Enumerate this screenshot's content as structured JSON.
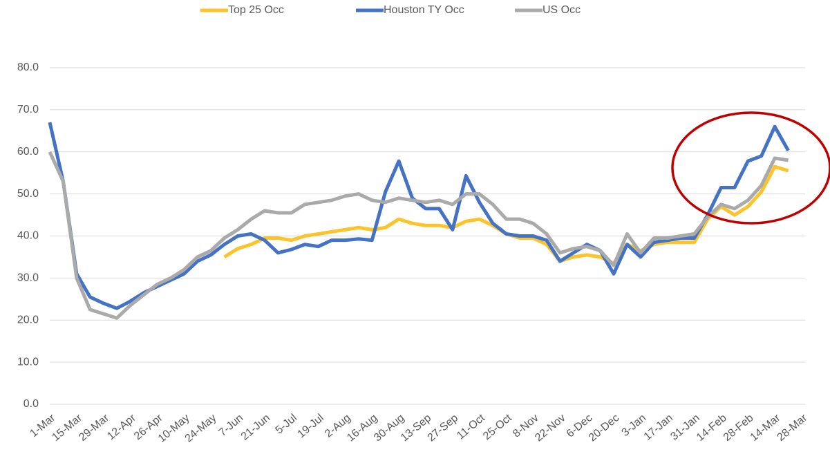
{
  "chart_data": {
    "type": "line",
    "categories": [
      "1-Mar",
      null,
      "15-Mar",
      null,
      "29-Mar",
      null,
      "12-Apr",
      null,
      "26-Apr",
      null,
      "10-May",
      null,
      "24-May",
      null,
      "7-Jun",
      null,
      "21-Jun",
      null,
      "5-Jul",
      null,
      "19-Jul",
      null,
      "2-Aug",
      null,
      "16-Aug",
      null,
      "30-Aug",
      null,
      "13-Sep",
      null,
      "27-Sep",
      null,
      "11-Oct",
      null,
      "25-Oct",
      null,
      "8-Nov",
      null,
      "22-Nov",
      null,
      "6-Dec",
      null,
      "20-Dec",
      null,
      "3-Jan",
      null,
      "17-Jan",
      null,
      "31-Jan",
      null,
      "14-Feb",
      null,
      "28-Feb",
      null,
      "14-Mar",
      null,
      "28-Mar"
    ],
    "series": [
      {
        "name": "Top 25 Occ",
        "color": "#fcc42a",
        "values": [
          null,
          null,
          null,
          null,
          null,
          null,
          null,
          null,
          null,
          null,
          null,
          null,
          null,
          35,
          37,
          38,
          39.5,
          39.5,
          39,
          40,
          40.5,
          41,
          41.5,
          42,
          41.5,
          42,
          44,
          43,
          42.5,
          42.5,
          42,
          43.5,
          44,
          42.5,
          40.5,
          39.5,
          39.5,
          38,
          34,
          35,
          35.5,
          35,
          33.5,
          38,
          36.5,
          38,
          38.5,
          38.5,
          38.5,
          44,
          47,
          45,
          47,
          50.5,
          56.5,
          55.5,
          null
        ]
      },
      {
        "name": "Houston TY Occ",
        "color": "#4472c4",
        "values": [
          67,
          53,
          31,
          25.5,
          24,
          22.8,
          24.5,
          26.5,
          28,
          29.5,
          31,
          34,
          35.5,
          38,
          40,
          40.5,
          39,
          36,
          36.8,
          38,
          37.5,
          39,
          39,
          39.3,
          39,
          50.5,
          57.8,
          49,
          46.5,
          46.5,
          41.5,
          54.3,
          48,
          43,
          40.5,
          40,
          40,
          39,
          34,
          36,
          38,
          36.5,
          31,
          38,
          35,
          38.5,
          39,
          39.5,
          39.5,
          45,
          51.5,
          51.5,
          57.8,
          59,
          66,
          60.3,
          null
        ]
      },
      {
        "name": "US Occ",
        "color": "#aaaaaa",
        "values": [
          60,
          53,
          30,
          22.5,
          21.5,
          20.5,
          23.5,
          26,
          28.5,
          30,
          32,
          35,
          36.5,
          39.5,
          41.5,
          44,
          46,
          45.5,
          45.5,
          47.5,
          48,
          48.5,
          49.5,
          50,
          48.5,
          48,
          49,
          48.5,
          48,
          48.5,
          47.5,
          50,
          50,
          47.5,
          44,
          44,
          43,
          40.5,
          36,
          37,
          37.5,
          36.5,
          33,
          40.5,
          36,
          39.5,
          39.5,
          40,
          40.5,
          44.5,
          47.5,
          46.5,
          48.5,
          52,
          58.5,
          58,
          null
        ]
      }
    ],
    "ylim": [
      0,
      80
    ],
    "yticks": [
      {
        "value": 0,
        "label": "0.0"
      },
      {
        "value": 10,
        "label": "10.0"
      },
      {
        "value": 20,
        "label": "20.0"
      },
      {
        "value": 30,
        "label": "30.0"
      },
      {
        "value": 40,
        "label": "40.0"
      },
      {
        "value": 50,
        "label": "50.0"
      },
      {
        "value": 60,
        "label": "60.0"
      },
      {
        "value": 70,
        "label": "70.0"
      },
      {
        "value": 80,
        "label": "80.0"
      }
    ],
    "grid": true,
    "legend": "top"
  }
}
